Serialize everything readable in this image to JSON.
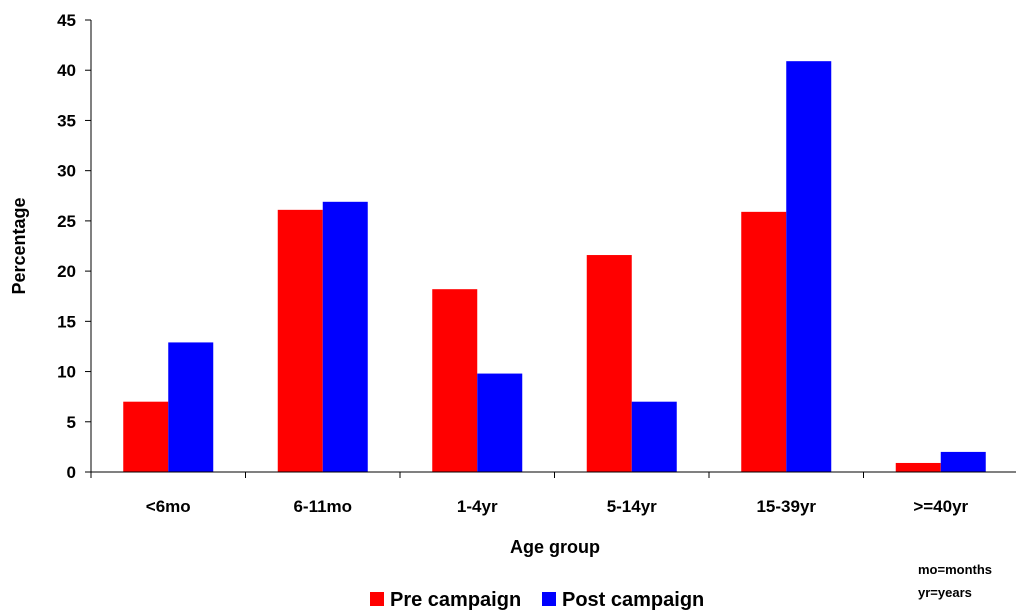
{
  "chart_data": {
    "type": "bar",
    "title": "",
    "xlabel": "Age group",
    "ylabel": "Percentage",
    "ylim": [
      0,
      45
    ],
    "yticks": [
      0,
      5,
      10,
      15,
      20,
      25,
      30,
      35,
      40,
      45
    ],
    "categories": [
      "<6mo",
      "6-11mo",
      "1-4yr",
      "5-14yr",
      "15-39yr",
      ">=40yr"
    ],
    "series": [
      {
        "name": "Pre campaign",
        "color": "#FF0000",
        "values": [
          7,
          26.1,
          18.2,
          21.6,
          25.9,
          0.9
        ]
      },
      {
        "name": "Post campaign",
        "color": "#0000FF",
        "values": [
          12.9,
          26.9,
          9.8,
          7,
          40.9,
          2
        ]
      }
    ],
    "grid": false,
    "legend_position": "bottom",
    "notes": [
      "mo=months",
      "yr=years"
    ]
  }
}
